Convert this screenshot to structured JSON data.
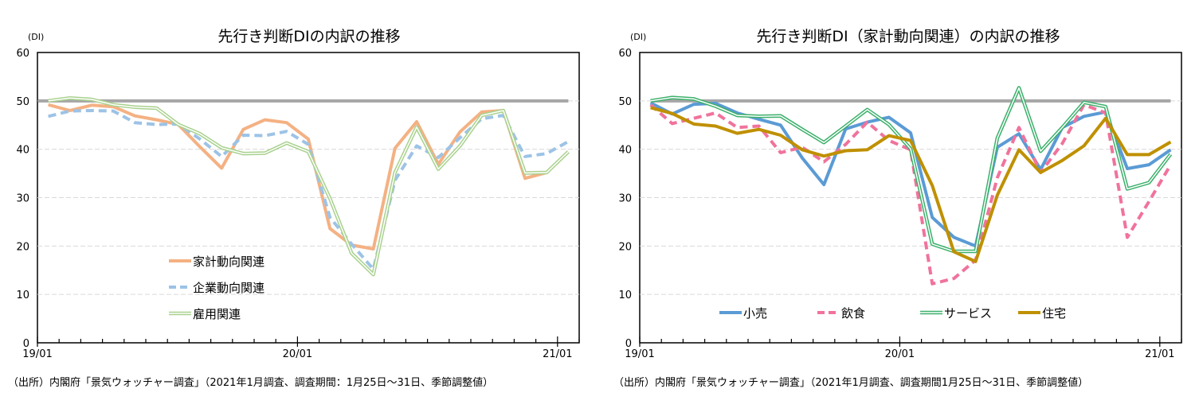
{
  "chart_data": [
    {
      "type": "line",
      "title": "先行き判断DIの内訳の推移",
      "ylabel": "(DI)",
      "ylim": [
        0,
        60
      ],
      "yticks": [
        0,
        10,
        20,
        30,
        40,
        50,
        60
      ],
      "x_tick_labels": [
        "19/01",
        "20/01",
        "21/01"
      ],
      "x_months": [
        "19/01",
        "19/02",
        "19/03",
        "19/04",
        "19/05",
        "19/06",
        "19/07",
        "19/08",
        "19/09",
        "19/10",
        "19/11",
        "19/12",
        "20/01",
        "20/02",
        "20/03",
        "20/04",
        "20/05",
        "20/06",
        "20/07",
        "20/08",
        "20/09",
        "20/10",
        "20/11",
        "20/12",
        "21/01"
      ],
      "reference_line": 50,
      "grid": true,
      "legend_placement": "bottom-center",
      "series": [
        {
          "name": "家計動向関連",
          "color": "#f4b183",
          "style": "solid",
          "values": [
            49.2,
            48.0,
            49.1,
            48.8,
            46.9,
            46.1,
            45.1,
            40.5,
            36.1,
            44.1,
            46.1,
            45.5,
            42.1,
            23.6,
            20.2,
            19.4,
            40.2,
            45.7,
            36.9,
            43.6,
            47.7,
            48.0,
            34.0,
            35.2,
            39.5
          ]
        },
        {
          "name": "企業動向関連",
          "color": "#9dc3e6",
          "style": "dashed",
          "values": [
            46.8,
            47.9,
            48.0,
            47.9,
            45.5,
            45.1,
            45.2,
            42.1,
            38.5,
            42.9,
            42.8,
            43.7,
            41.0,
            25.9,
            20.4,
            15.2,
            33.6,
            40.7,
            38.3,
            42.4,
            46.3,
            47.0,
            38.5,
            39.1,
            41.6
          ]
        },
        {
          "name": "雇用関連",
          "color": "#a9d18e",
          "style": "double",
          "values": [
            50.0,
            50.6,
            50.3,
            49.2,
            48.7,
            48.5,
            45.1,
            43.2,
            40.3,
            39.1,
            39.2,
            41.3,
            39.5,
            29.8,
            18.5,
            14.1,
            35.2,
            44.6,
            35.9,
            40.7,
            47.0,
            48.0,
            35.1,
            35.2,
            39.5
          ]
        }
      ]
    },
    {
      "type": "line",
      "title": "先行き判断DI（家計動向関連）の内訳の推移",
      "ylabel": "(DI)",
      "ylim": [
        0,
        60
      ],
      "yticks": [
        0,
        10,
        20,
        30,
        40,
        50,
        60
      ],
      "x_tick_labels": [
        "19/01",
        "20/01",
        "21/01"
      ],
      "x_months": [
        "19/01",
        "19/02",
        "19/03",
        "19/04",
        "19/05",
        "19/06",
        "19/07",
        "19/08",
        "19/09",
        "19/10",
        "19/11",
        "19/12",
        "20/01",
        "20/02",
        "20/03",
        "20/04",
        "20/05",
        "20/06",
        "20/07",
        "20/08",
        "20/09",
        "20/10",
        "20/11",
        "20/12",
        "21/01"
      ],
      "reference_line": 50,
      "grid": true,
      "legend_placement": "bottom-center",
      "series": [
        {
          "name": "小売",
          "color": "#5b9bd5",
          "style": "solid",
          "values": [
            49.6,
            47.3,
            49.3,
            49.5,
            47.5,
            46.2,
            45.0,
            38.2,
            32.7,
            44.2,
            45.6,
            46.6,
            43.4,
            25.9,
            21.8,
            20.0,
            40.4,
            43.2,
            35.8,
            44.5,
            46.8,
            47.7,
            36.0,
            36.8,
            39.9
          ]
        },
        {
          "name": "飲食",
          "color": "#f0739c",
          "style": "dashed",
          "values": [
            49.2,
            45.3,
            46.4,
            47.5,
            44.5,
            44.8,
            39.3,
            40.4,
            37.4,
            41.0,
            45.6,
            41.8,
            39.9,
            12.2,
            13.3,
            17.1,
            34.1,
            44.5,
            35.2,
            41.2,
            49.2,
            47.5,
            21.8,
            29.2,
            36.8
          ]
        },
        {
          "name": "サービス",
          "color": "#3cb06b",
          "style": "double",
          "values": [
            50.0,
            50.7,
            50.4,
            48.9,
            47.0,
            46.8,
            46.9,
            44.1,
            41.4,
            44.8,
            48.2,
            45.1,
            40.1,
            20.4,
            18.9,
            18.9,
            42.3,
            52.7,
            39.6,
            44.5,
            49.7,
            48.8,
            31.8,
            33.1,
            39.0
          ]
        },
        {
          "name": "住宅",
          "color": "#bf9000",
          "style": "solid",
          "values": [
            48.6,
            47.4,
            45.2,
            44.8,
            43.3,
            44.1,
            42.9,
            39.9,
            38.6,
            39.7,
            39.9,
            42.8,
            41.8,
            32.5,
            18.8,
            16.8,
            30.5,
            39.9,
            35.2,
            37.7,
            40.7,
            46.4,
            38.9,
            38.9,
            41.5
          ]
        }
      ]
    }
  ],
  "notes": [
    "（出所）内閣府「景気ウォッチャー調査」（2021年1月調査、調査期間：1月25日～31日、季節調整値）",
    "（出所）内閣府「景気ウォッチャー調査」（2021年1月調査、調査期間1月25日～31日、季節調整値）"
  ],
  "colors": {
    "reference_line": "#a6a6a6",
    "grid": "#d9d9d9"
  }
}
